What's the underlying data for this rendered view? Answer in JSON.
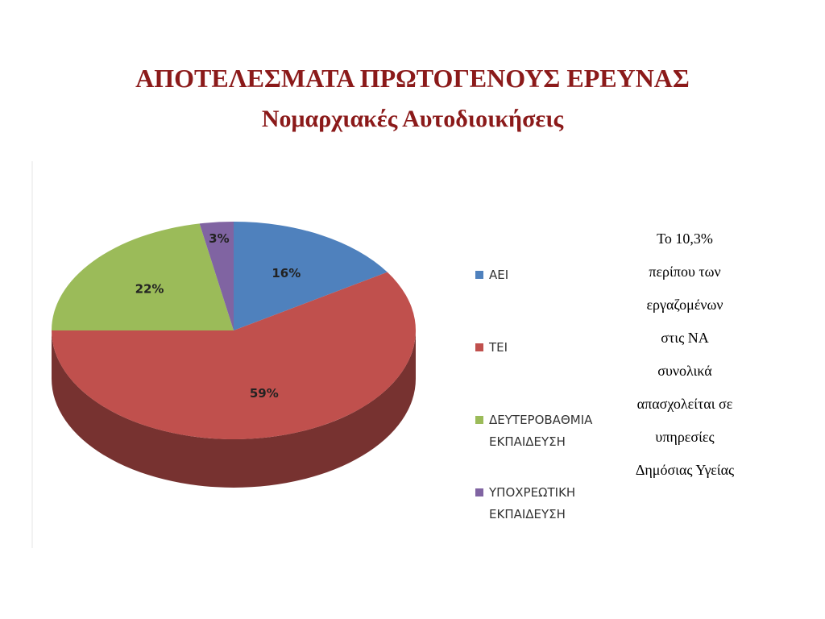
{
  "chart_data": {
    "type": "pie3d",
    "title": "ΑΠΟΤΕΛΕΣΜΑΤΑ ΠΡΩΤΟΓΕΝΟΥΣ ΕΡΕΥΝΑΣ",
    "subtitle": "Νομαρχιακές Αυτοδιοικήσεις",
    "categories": [
      "ΑΕΙ",
      "ΤΕΙ",
      "ΔΕΥΤΕΡΟΒΑΘΜΙΑ ΕΚΠΑΙΔΕΥΣΗ",
      "ΥΠΟΧΡΕΩΤΙΚΗ ΕΚΠΑΙΔΕΥΣΗ"
    ],
    "values": [
      16,
      59,
      22,
      3
    ],
    "value_labels": [
      "16%",
      "59%",
      "22%",
      "3%"
    ],
    "colors": [
      "#4f81bd",
      "#c0504d",
      "#9bbb59",
      "#8064a2"
    ],
    "legend": "right",
    "annotation": [
      "Το 10,3%",
      "περίπου των",
      "εργαζομένων",
      "στις ΝΑ",
      "συνολικά",
      "απασχολείται σε",
      "υπηρεσίες",
      "Δημόσιας Υγείας"
    ]
  }
}
